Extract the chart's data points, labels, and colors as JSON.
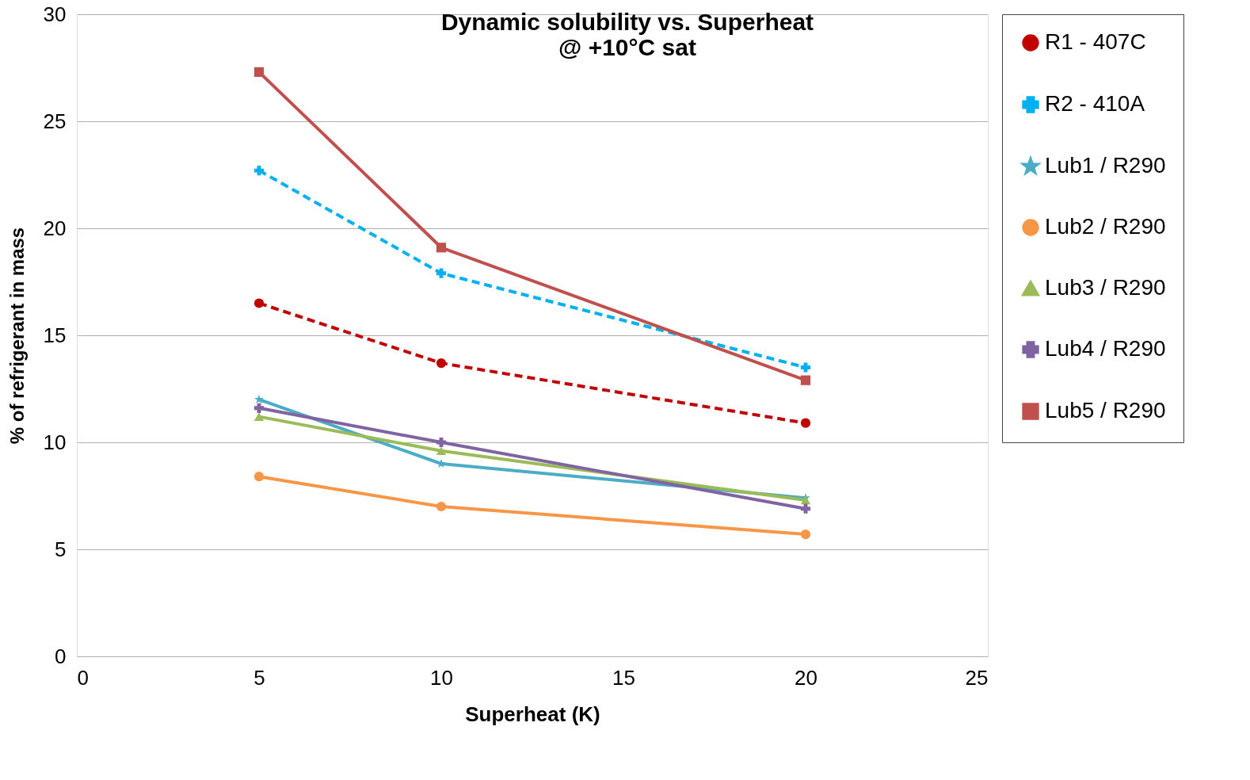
{
  "chart_data": {
    "type": "line",
    "title": "Dynamic solubility vs. Superheat\n@ +10°C sat",
    "xlabel": "Superheat (K)",
    "ylabel": "% of refrigerant in mass",
    "x": [
      5,
      10,
      20
    ],
    "xlim": [
      0,
      25
    ],
    "xticks": [
      0,
      5,
      10,
      15,
      20,
      25
    ],
    "ylim": [
      0,
      30
    ],
    "yticks": [
      0,
      5,
      10,
      15,
      20,
      25,
      30
    ],
    "grid": "y",
    "legend": "right",
    "series": [
      {
        "name": "R1 - 407C",
        "color": "#c00000",
        "values": [
          16.5,
          13.7,
          10.9
        ],
        "marker": "circle",
        "line_style": "dashed"
      },
      {
        "name": "R2 - 410A",
        "color": "#00b0f0",
        "values": [
          22.7,
          17.9,
          13.5
        ],
        "marker": "cross",
        "line_style": "dashed"
      },
      {
        "name": "Lub1 / R290",
        "color": "#4bacc6",
        "values": [
          12.0,
          9.0,
          7.4
        ],
        "marker": "star",
        "line_style": "solid"
      },
      {
        "name": "Lub2 / R290",
        "color": "#f79646",
        "values": [
          8.4,
          7.0,
          5.7
        ],
        "marker": "circle",
        "line_style": "solid"
      },
      {
        "name": "Lub3 / R290",
        "color": "#9bbb59",
        "values": [
          11.2,
          9.6,
          7.3
        ],
        "marker": "triangle",
        "line_style": "solid"
      },
      {
        "name": "Lub4 / R290",
        "color": "#8064a2",
        "values": [
          11.6,
          10.0,
          6.9
        ],
        "marker": "cross",
        "line_style": "solid"
      },
      {
        "name": "Lub5 / R290",
        "color": "#c0504d",
        "values": [
          27.3,
          19.1,
          12.9
        ],
        "marker": "square",
        "line_style": "solid"
      }
    ]
  }
}
